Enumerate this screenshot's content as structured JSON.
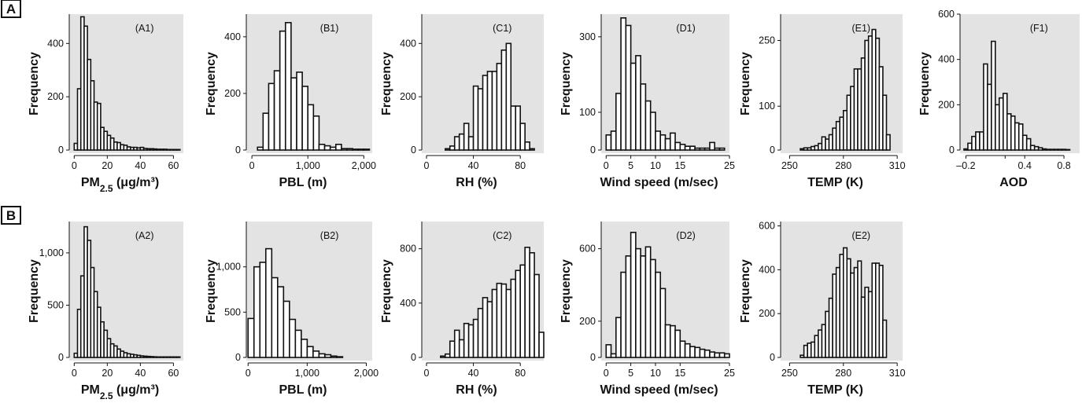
{
  "figure": {
    "row_labels": [
      "A",
      "B"
    ],
    "plot_background": "#e3e3e3",
    "bar_fill": "#ffffff",
    "bar_stroke": "#111111"
  },
  "chart_data": [
    {
      "id": "A1",
      "type": "bar",
      "panel_label": "(A1)",
      "ylabel": "Frequency",
      "xlabel_main": "PM",
      "xlabel_sub": "2.5",
      "xlabel_tail": " (μg/m³)",
      "xlim": [
        -3,
        66
      ],
      "xticks": [
        0,
        20,
        40,
        60
      ],
      "xtick_labels": [
        "0",
        "20",
        "40",
        "60"
      ],
      "ylim": [
        0,
        510
      ],
      "yticks": [
        0,
        200,
        400
      ],
      "ytick_labels": [
        "0",
        "200",
        "400"
      ],
      "bin_starts": [
        0,
        2,
        4,
        6,
        8,
        10,
        12,
        14,
        16,
        18,
        20,
        22,
        24,
        26,
        28,
        30,
        32,
        34,
        36,
        38,
        40,
        42,
        44,
        46,
        48,
        50,
        52,
        54,
        56,
        58,
        60,
        62
      ],
      "bin_width": 2,
      "values": [
        25,
        230,
        500,
        465,
        340,
        260,
        180,
        175,
        85,
        70,
        55,
        45,
        30,
        28,
        20,
        18,
        12,
        10,
        10,
        8,
        10,
        6,
        5,
        5,
        4,
        3,
        3,
        3,
        2,
        2,
        2,
        2
      ]
    },
    {
      "id": "B1",
      "type": "bar",
      "panel_label": "(B1)",
      "ylabel": "Frequency",
      "xlabel_main": "PBL (m)",
      "xlim": [
        -100,
        2150
      ],
      "xticks": [
        0,
        1000,
        2000
      ],
      "xtick_labels": [
        "0",
        "1,000",
        "2,000"
      ],
      "ylim": [
        0,
        480
      ],
      "yticks": [
        0,
        200,
        400
      ],
      "ytick_labels": [
        "0",
        "200",
        "400"
      ],
      "bin_starts": [
        100,
        200,
        300,
        400,
        500,
        600,
        700,
        800,
        900,
        1000,
        1100,
        1200,
        1300,
        1400,
        1500,
        1600,
        1700,
        1800,
        1900,
        2000
      ],
      "bin_width": 100,
      "values": [
        10,
        130,
        235,
        280,
        420,
        450,
        255,
        275,
        225,
        160,
        120,
        20,
        15,
        10,
        20,
        5,
        5,
        3,
        3,
        3
      ]
    },
    {
      "id": "C1",
      "type": "bar",
      "panel_label": "(C1)",
      "ylabel": "Frequency",
      "xlabel_main": "RH (%)",
      "xlim": [
        -4,
        100
      ],
      "xticks": [
        0,
        40,
        80
      ],
      "xtick_labels": [
        "0",
        "40",
        "80"
      ],
      "ylim": [
        0,
        510
      ],
      "yticks": [
        0,
        200,
        400
      ],
      "ytick_labels": [
        "0",
        "200",
        "400"
      ],
      "bin_starts": [
        16,
        20,
        24,
        28,
        32,
        36,
        40,
        44,
        48,
        52,
        56,
        60,
        64,
        68,
        72,
        76,
        80,
        84,
        88
      ],
      "bin_width": 4,
      "values": [
        5,
        15,
        50,
        60,
        100,
        50,
        240,
        230,
        280,
        295,
        295,
        325,
        375,
        400,
        165,
        165,
        100,
        30,
        5
      ]
    },
    {
      "id": "D1",
      "type": "bar",
      "panel_label": "(D1)",
      "ylabel": "Frequency",
      "xlabel_main": "Wind speed (m/sec)",
      "xlim": [
        -1,
        25
      ],
      "xticks": [
        0,
        5,
        10,
        15,
        25
      ],
      "xtick_labels": [
        "0",
        "5",
        "10",
        "15",
        "25"
      ],
      "ylim": [
        0,
        360
      ],
      "yticks": [
        0,
        100,
        300
      ],
      "ytick_labels": [
        "0",
        "100",
        "300"
      ],
      "bin_starts": [
        0,
        1,
        2,
        3,
        4,
        5,
        6,
        7,
        8,
        9,
        10,
        11,
        12,
        13,
        14,
        15,
        16,
        17,
        18,
        19,
        20,
        21,
        22,
        23
      ],
      "bin_width": 1,
      "values": [
        40,
        50,
        150,
        350,
        330,
        230,
        250,
        175,
        130,
        100,
        50,
        40,
        30,
        45,
        20,
        15,
        10,
        10,
        5,
        5,
        5,
        20,
        5,
        5
      ]
    },
    {
      "id": "E1",
      "type": "bar",
      "panel_label": "(E1)",
      "ylabel": "Frequency",
      "xlabel_main": "TEMP (K)",
      "xlim": [
        245,
        313
      ],
      "xticks": [
        250,
        280,
        310
      ],
      "xtick_labels": [
        "250",
        "280",
        "310"
      ],
      "ylim": [
        0,
        310
      ],
      "yticks": [
        0,
        100,
        250
      ],
      "ytick_labels": [
        "0",
        "100",
        "250"
      ],
      "bin_starts": [
        256,
        258,
        260,
        262,
        264,
        266,
        268,
        270,
        272,
        274,
        276,
        278,
        280,
        282,
        284,
        286,
        288,
        290,
        292,
        294,
        296,
        298,
        300,
        302,
        304
      ],
      "bin_width": 2,
      "values": [
        3,
        5,
        5,
        8,
        10,
        15,
        30,
        25,
        35,
        50,
        65,
        75,
        90,
        125,
        145,
        185,
        185,
        210,
        250,
        260,
        275,
        255,
        190,
        125,
        35
      ]
    },
    {
      "id": "F1",
      "type": "bar",
      "panel_label": "(F1)",
      "ylabel": "Frequency",
      "xlabel_main": "AOD",
      "xlim": [
        -0.26,
        0.96
      ],
      "xticks": [
        -0.2,
        0.2,
        0.4,
        0.8
      ],
      "xtick_labels": [
        "–0.2",
        "",
        "0.4",
        "0.8"
      ],
      "ylim": [
        0,
        600
      ],
      "yticks": [
        0,
        200,
        400,
        600
      ],
      "ytick_labels": [
        "0",
        "200",
        "400",
        "600"
      ],
      "bin_starts": [
        -0.22,
        -0.18,
        -0.14,
        -0.1,
        -0.06,
        -0.02,
        0.02,
        0.06,
        0.1,
        0.14,
        0.18,
        0.22,
        0.26,
        0.3,
        0.34,
        0.38,
        0.42,
        0.46,
        0.5,
        0.54,
        0.58,
        0.62,
        0.66,
        0.7,
        0.74,
        0.78,
        0.82
      ],
      "bin_width": 0.04,
      "values": [
        5,
        30,
        60,
        80,
        80,
        380,
        290,
        480,
        200,
        230,
        250,
        160,
        150,
        120,
        115,
        65,
        50,
        20,
        15,
        10,
        5,
        3,
        3,
        3,
        3,
        3,
        2
      ]
    },
    {
      "id": "A2",
      "type": "bar",
      "panel_label": "(A2)",
      "ylabel": "Frequency",
      "xlabel_main": "PM",
      "xlabel_sub": "2.5",
      "xlabel_tail": " (μg/m³)",
      "xlim": [
        -3,
        66
      ],
      "xticks": [
        0,
        20,
        40,
        60
      ],
      "xtick_labels": [
        "0",
        "20",
        "40",
        "60"
      ],
      "ylim": [
        0,
        1300
      ],
      "yticks": [
        0,
        500,
        1000
      ],
      "ytick_labels": [
        "0",
        "500",
        "1,000"
      ],
      "bin_starts": [
        0,
        2,
        4,
        6,
        8,
        10,
        12,
        14,
        16,
        18,
        20,
        22,
        24,
        26,
        28,
        30,
        32,
        34,
        36,
        38,
        40,
        42,
        44,
        46,
        48,
        50,
        52,
        54,
        56,
        58,
        60,
        62
      ],
      "bin_width": 2,
      "values": [
        40,
        460,
        780,
        1250,
        1120,
        860,
        630,
        480,
        340,
        260,
        180,
        130,
        110,
        80,
        60,
        45,
        35,
        30,
        25,
        20,
        15,
        12,
        10,
        8,
        6,
        5,
        5,
        5,
        5,
        5,
        5,
        5
      ]
    },
    {
      "id": "B2",
      "type": "bar",
      "panel_label": "(B2)",
      "ylabel": "Frequency",
      "xlabel_main": "PBL (m)",
      "xlim": [
        -30,
        2100
      ],
      "xticks": [
        0,
        1000,
        2000
      ],
      "xtick_labels": [
        "0",
        "1,000",
        "2,000"
      ],
      "ylim": [
        0,
        1500
      ],
      "yticks": [
        0,
        500,
        1000
      ],
      "ytick_labels": [
        "0",
        "500",
        "1,000"
      ],
      "bin_starts": [
        0,
        100,
        200,
        300,
        400,
        500,
        600,
        700,
        800,
        900,
        1000,
        1100,
        1200,
        1300,
        1400,
        1500
      ],
      "bin_width": 100,
      "values": [
        430,
        1000,
        1050,
        1200,
        880,
        780,
        620,
        420,
        300,
        200,
        120,
        70,
        40,
        30,
        15,
        8
      ]
    },
    {
      "id": "C2",
      "type": "bar",
      "panel_label": "(C2)",
      "ylabel": "Frequency",
      "xlabel_main": "RH (%)",
      "xlim": [
        -4,
        100
      ],
      "xticks": [
        0,
        40,
        80
      ],
      "xtick_labels": [
        "0",
        "40",
        "80"
      ],
      "ylim": [
        0,
        1000
      ],
      "yticks": [
        0,
        400,
        800
      ],
      "ytick_labels": [
        "0",
        "400",
        "800"
      ],
      "bin_starts": [
        12,
        16,
        20,
        24,
        28,
        32,
        36,
        40,
        44,
        48,
        52,
        56,
        60,
        64,
        68,
        72,
        76,
        80,
        84,
        88,
        92,
        96
      ],
      "bin_width": 4,
      "values": [
        10,
        25,
        120,
        200,
        130,
        250,
        240,
        280,
        360,
        440,
        410,
        500,
        545,
        540,
        500,
        575,
        640,
        680,
        810,
        770,
        610,
        185
      ]
    },
    {
      "id": "D2",
      "type": "bar",
      "panel_label": "(D2)",
      "ylabel": "Frequency",
      "xlabel_main": "Wind speed (m/sec)",
      "xlim": [
        -1,
        25
      ],
      "xticks": [
        0,
        5,
        10,
        15,
        25
      ],
      "xtick_labels": [
        "0",
        "5",
        "10",
        "15",
        "25"
      ],
      "ylim": [
        0,
        750
      ],
      "yticks": [
        0,
        200,
        600
      ],
      "ytick_labels": [
        "0",
        "200",
        "600"
      ],
      "bin_starts": [
        0,
        1,
        2,
        3,
        4,
        5,
        6,
        7,
        8,
        9,
        10,
        11,
        12,
        13,
        14,
        15,
        16,
        17,
        18,
        19,
        20,
        21,
        22,
        23,
        24
      ],
      "bin_width": 1,
      "values": [
        70,
        20,
        220,
        470,
        560,
        690,
        600,
        560,
        610,
        540,
        470,
        380,
        180,
        175,
        150,
        90,
        75,
        60,
        55,
        45,
        40,
        30,
        25,
        25,
        20
      ]
    },
    {
      "id": "E2",
      "type": "bar",
      "panel_label": "(E2)",
      "ylabel": "Frequency",
      "xlabel_main": "TEMP (K)",
      "xlim": [
        245,
        313
      ],
      "xticks": [
        250,
        280,
        310
      ],
      "xtick_labels": [
        "250",
        "280",
        "310"
      ],
      "ylim": [
        0,
        620
      ],
      "yticks": [
        0,
        200,
        400,
        600
      ],
      "ytick_labels": [
        "0",
        "200",
        "400",
        "600"
      ],
      "bin_starts": [
        256,
        258,
        260,
        262,
        264,
        266,
        268,
        270,
        272,
        274,
        276,
        278,
        280,
        282,
        284,
        286,
        288,
        290,
        292,
        294,
        296,
        298,
        300,
        302
      ],
      "bin_width": 2,
      "values": [
        10,
        55,
        65,
        70,
        100,
        125,
        150,
        210,
        270,
        380,
        410,
        470,
        500,
        450,
        385,
        410,
        440,
        275,
        320,
        300,
        430,
        430,
        420,
        170
      ]
    }
  ]
}
